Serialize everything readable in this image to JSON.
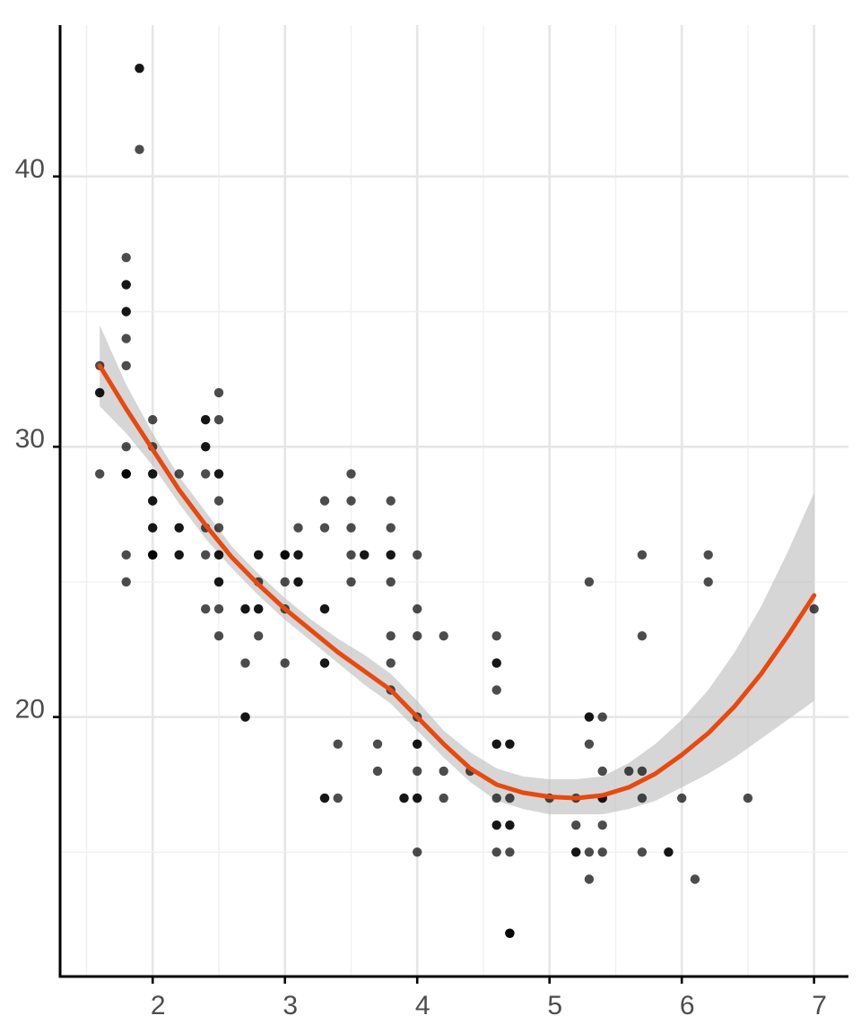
{
  "chart_data": {
    "type": "scatter",
    "title": "",
    "xlabel": "",
    "ylabel": "",
    "xlim": [
      1.3,
      7.26
    ],
    "ylim": [
      10.4,
      45.6
    ],
    "x_ticks": [
      2,
      3,
      4,
      5,
      6,
      7
    ],
    "x_tick_labels": [
      "2",
      "3",
      "4",
      "5",
      "6",
      "7"
    ],
    "y_ticks": [
      20,
      30,
      40
    ],
    "y_tick_labels": [
      "20",
      "30",
      "40"
    ],
    "grid": true,
    "legend": "none",
    "colors": {
      "points": "#000000",
      "smooth_line": "#e8490f",
      "confidence_band": "#bdbdbd"
    },
    "points": [
      [
        1.6,
        33
      ],
      [
        1.6,
        32
      ],
      [
        1.6,
        32
      ],
      [
        1.6,
        29
      ],
      [
        1.8,
        37
      ],
      [
        1.8,
        36
      ],
      [
        1.8,
        36
      ],
      [
        1.8,
        35
      ],
      [
        1.8,
        35
      ],
      [
        1.8,
        34
      ],
      [
        1.8,
        33
      ],
      [
        1.8,
        30
      ],
      [
        1.8,
        29
      ],
      [
        1.8,
        29
      ],
      [
        1.8,
        29
      ],
      [
        1.8,
        26
      ],
      [
        1.8,
        25
      ],
      [
        1.9,
        44
      ],
      [
        1.9,
        44
      ],
      [
        1.9,
        41
      ],
      [
        2.0,
        31
      ],
      [
        2.0,
        30
      ],
      [
        2.0,
        29
      ],
      [
        2.0,
        29
      ],
      [
        2.0,
        28
      ],
      [
        2.0,
        28
      ],
      [
        2.0,
        27
      ],
      [
        2.0,
        27
      ],
      [
        2.0,
        26
      ],
      [
        2.0,
        26
      ],
      [
        2.0,
        26
      ],
      [
        2.2,
        29
      ],
      [
        2.2,
        27
      ],
      [
        2.2,
        27
      ],
      [
        2.2,
        26
      ],
      [
        2.2,
        26
      ],
      [
        2.4,
        31
      ],
      [
        2.4,
        31
      ],
      [
        2.4,
        30
      ],
      [
        2.4,
        30
      ],
      [
        2.4,
        29
      ],
      [
        2.4,
        27
      ],
      [
        2.4,
        26
      ],
      [
        2.4,
        24
      ],
      [
        2.5,
        32
      ],
      [
        2.5,
        31
      ],
      [
        2.5,
        29
      ],
      [
        2.5,
        29
      ],
      [
        2.5,
        28
      ],
      [
        2.5,
        27
      ],
      [
        2.5,
        26
      ],
      [
        2.5,
        26
      ],
      [
        2.5,
        25
      ],
      [
        2.5,
        25
      ],
      [
        2.5,
        24
      ],
      [
        2.5,
        23
      ],
      [
        2.7,
        24
      ],
      [
        2.7,
        24
      ],
      [
        2.7,
        22
      ],
      [
        2.7,
        20
      ],
      [
        2.7,
        20
      ],
      [
        2.8,
        26
      ],
      [
        2.8,
        26
      ],
      [
        2.8,
        25
      ],
      [
        2.8,
        24
      ],
      [
        2.8,
        24
      ],
      [
        2.8,
        23
      ],
      [
        3.0,
        26
      ],
      [
        3.0,
        26
      ],
      [
        3.0,
        26
      ],
      [
        3.0,
        25
      ],
      [
        3.0,
        24
      ],
      [
        3.0,
        22
      ],
      [
        3.1,
        27
      ],
      [
        3.1,
        26
      ],
      [
        3.1,
        26
      ],
      [
        3.1,
        25
      ],
      [
        3.1,
        25
      ],
      [
        3.3,
        28
      ],
      [
        3.3,
        27
      ],
      [
        3.3,
        24
      ],
      [
        3.3,
        24
      ],
      [
        3.3,
        22
      ],
      [
        3.3,
        22
      ],
      [
        3.3,
        17
      ],
      [
        3.3,
        17
      ],
      [
        3.4,
        19
      ],
      [
        3.4,
        17
      ],
      [
        3.5,
        29
      ],
      [
        3.5,
        28
      ],
      [
        3.5,
        27
      ],
      [
        3.5,
        26
      ],
      [
        3.5,
        25
      ],
      [
        3.6,
        26
      ],
      [
        3.6,
        26
      ],
      [
        3.7,
        19
      ],
      [
        3.7,
        18
      ],
      [
        3.8,
        28
      ],
      [
        3.8,
        27
      ],
      [
        3.8,
        26
      ],
      [
        3.8,
        26
      ],
      [
        3.8,
        25
      ],
      [
        3.8,
        23
      ],
      [
        3.8,
        22
      ],
      [
        3.8,
        21
      ],
      [
        3.9,
        17
      ],
      [
        3.9,
        17
      ],
      [
        4.0,
        26
      ],
      [
        4.0,
        24
      ],
      [
        4.0,
        23
      ],
      [
        4.0,
        20
      ],
      [
        4.0,
        19
      ],
      [
        4.0,
        19
      ],
      [
        4.0,
        18
      ],
      [
        4.0,
        17
      ],
      [
        4.0,
        17
      ],
      [
        4.0,
        15
      ],
      [
        4.2,
        23
      ],
      [
        4.2,
        18
      ],
      [
        4.2,
        17
      ],
      [
        4.4,
        18
      ],
      [
        4.6,
        23
      ],
      [
        4.6,
        22
      ],
      [
        4.6,
        22
      ],
      [
        4.6,
        21
      ],
      [
        4.6,
        19
      ],
      [
        4.6,
        19
      ],
      [
        4.6,
        17
      ],
      [
        4.6,
        16
      ],
      [
        4.6,
        16
      ],
      [
        4.6,
        15
      ],
      [
        4.7,
        19
      ],
      [
        4.7,
        19
      ],
      [
        4.7,
        17
      ],
      [
        4.7,
        16
      ],
      [
        4.7,
        16
      ],
      [
        4.7,
        15
      ],
      [
        4.7,
        12
      ],
      [
        4.7,
        12
      ],
      [
        4.7,
        12
      ],
      [
        5.0,
        17
      ],
      [
        5.2,
        17
      ],
      [
        5.2,
        16
      ],
      [
        5.2,
        15
      ],
      [
        5.2,
        15
      ],
      [
        5.3,
        25
      ],
      [
        5.3,
        20
      ],
      [
        5.3,
        20
      ],
      [
        5.3,
        19
      ],
      [
        5.3,
        15
      ],
      [
        5.3,
        14
      ],
      [
        5.4,
        20
      ],
      [
        5.4,
        18
      ],
      [
        5.4,
        17
      ],
      [
        5.4,
        17
      ],
      [
        5.4,
        16
      ],
      [
        5.4,
        15
      ],
      [
        5.6,
        18
      ],
      [
        5.7,
        26
      ],
      [
        5.7,
        23
      ],
      [
        5.7,
        18
      ],
      [
        5.7,
        17
      ],
      [
        5.7,
        15
      ],
      [
        5.9,
        15
      ],
      [
        5.9,
        15
      ],
      [
        6.0,
        17
      ],
      [
        6.1,
        14
      ],
      [
        6.2,
        26
      ],
      [
        6.2,
        25
      ],
      [
        6.5,
        17
      ],
      [
        7.0,
        24
      ]
    ],
    "smooth": {
      "x": [
        1.6,
        1.8,
        2.0,
        2.2,
        2.4,
        2.6,
        2.8,
        3.0,
        3.2,
        3.4,
        3.6,
        3.8,
        4.0,
        4.2,
        4.4,
        4.6,
        4.8,
        5.0,
        5.2,
        5.4,
        5.6,
        5.8,
        6.0,
        6.2,
        6.4,
        6.6,
        6.8,
        7.0
      ],
      "y": [
        33.0,
        31.4,
        29.9,
        28.4,
        27.1,
        25.9,
        24.9,
        24.0,
        23.2,
        22.4,
        21.7,
        21.0,
        20.0,
        19.0,
        18.1,
        17.5,
        17.2,
        17.05,
        17.0,
        17.1,
        17.4,
        17.9,
        18.6,
        19.4,
        20.4,
        21.6,
        23.0,
        24.5
      ],
      "lower": [
        31.5,
        30.5,
        29.3,
        27.9,
        26.6,
        25.5,
        24.5,
        23.6,
        22.8,
        22.0,
        21.2,
        20.5,
        19.5,
        18.5,
        17.6,
        16.9,
        16.6,
        16.4,
        16.4,
        16.4,
        16.6,
        16.9,
        17.4,
        17.9,
        18.5,
        19.2,
        19.9,
        20.6
      ],
      "upper": [
        34.5,
        32.3,
        30.5,
        28.9,
        27.6,
        26.3,
        25.3,
        24.4,
        23.6,
        22.9,
        22.3,
        21.6,
        20.6,
        19.5,
        18.7,
        18.1,
        17.8,
        17.7,
        17.7,
        17.8,
        18.3,
        19.0,
        19.9,
        21.0,
        22.4,
        24.1,
        26.1,
        28.3
      ]
    }
  }
}
